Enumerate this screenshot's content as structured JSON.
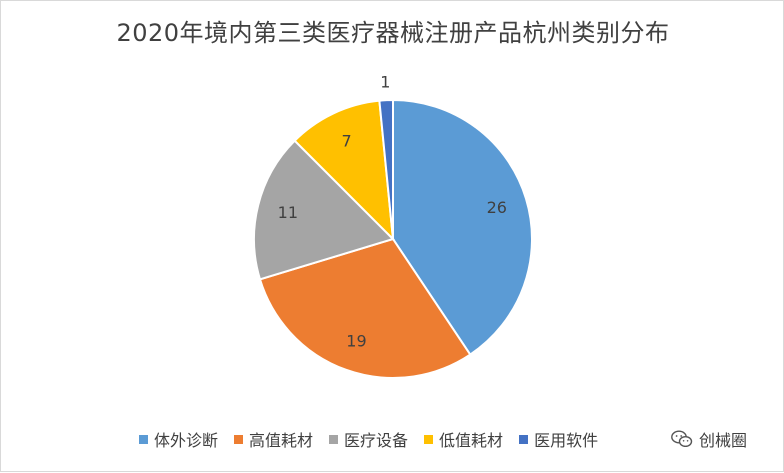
{
  "chart_data": {
    "type": "pie",
    "title": "2020年境内第三类医疗器械注册产品杭州类别分布",
    "categories": [
      "体外诊断",
      "高值耗材",
      "医疗设备",
      "低值耗材",
      "医用软件"
    ],
    "values": [
      26,
      19,
      11,
      7,
      1
    ],
    "colors": [
      "#5b9bd5",
      "#ed7d31",
      "#a5a5a5",
      "#ffc000",
      "#4472c4"
    ],
    "data_labels": [
      "26",
      "19",
      "11",
      "7",
      "1"
    ],
    "legend_position": "bottom",
    "start_angle": "12 o'clock, clockwise"
  },
  "watermark": {
    "text": "创械圈",
    "icon": "wechat-logo-icon"
  }
}
